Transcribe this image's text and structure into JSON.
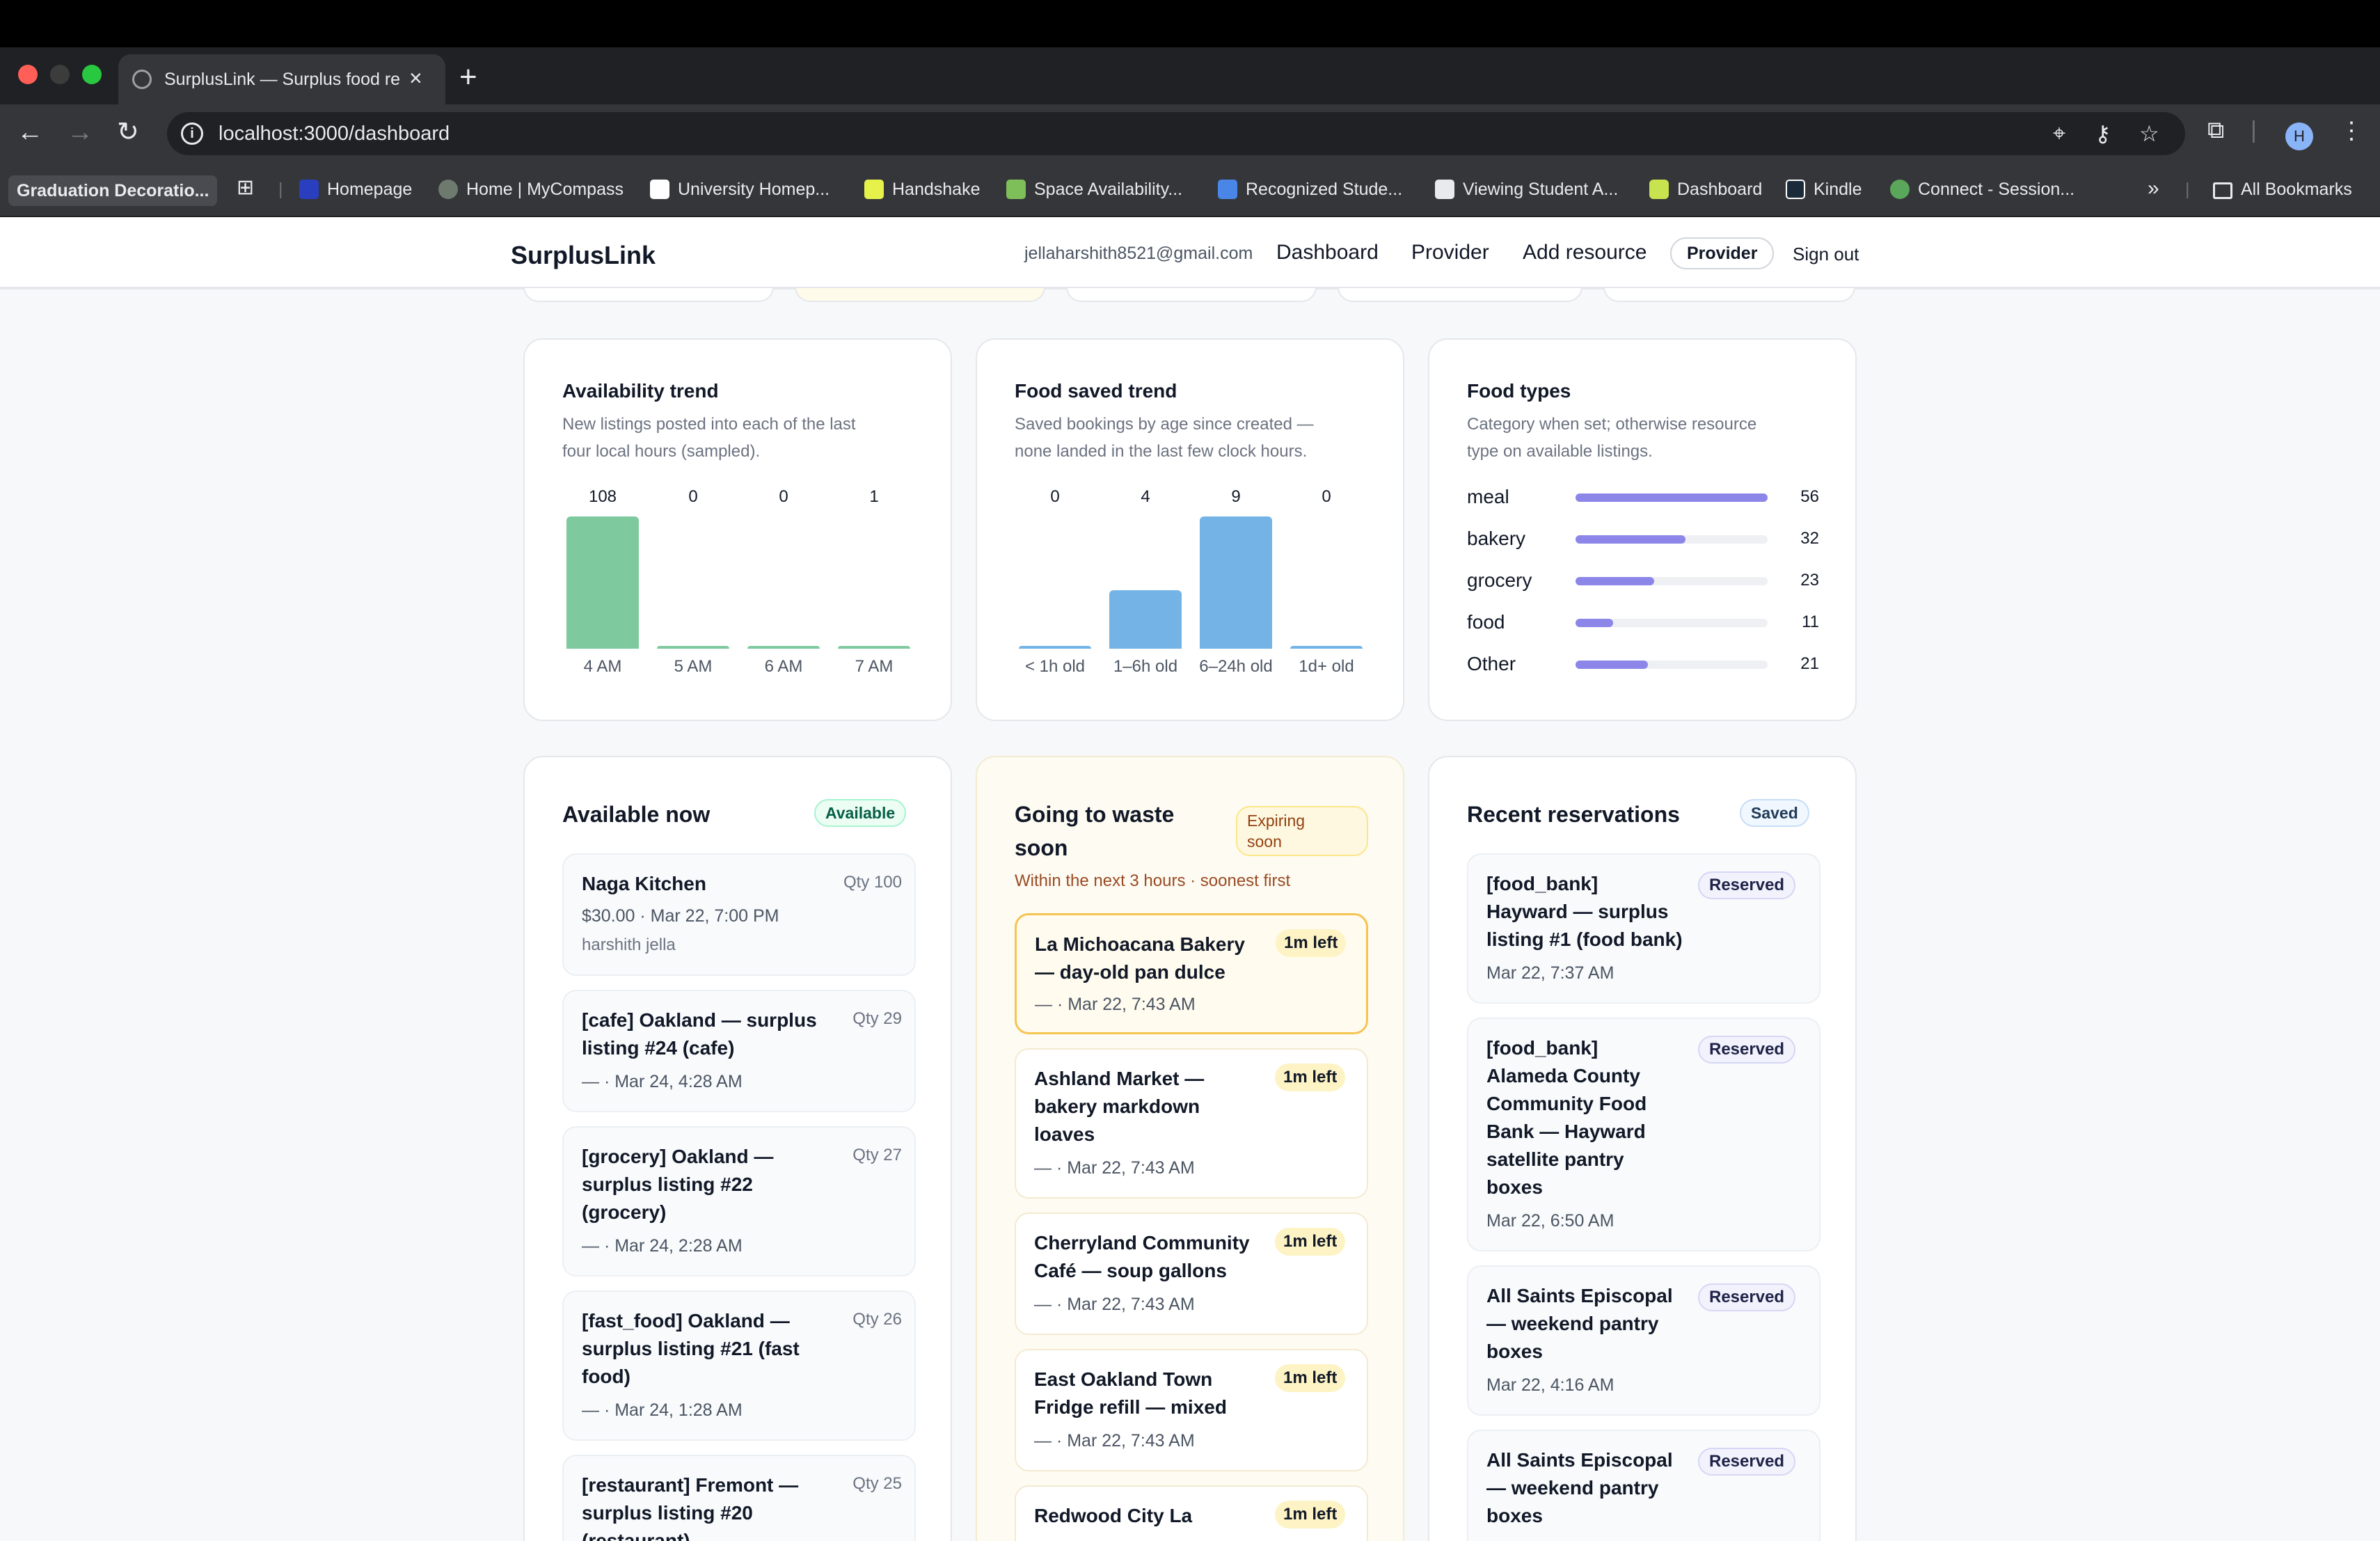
{
  "browser": {
    "tab_title": "SurplusLink — Surplus food re",
    "url": "localhost:3000/dashboard",
    "bookmarks": {
      "first": "Graduation Decoratio...",
      "items": [
        "Homepage",
        "Home | MyCompass",
        "University Homep...",
        "Handshake",
        "Space Availability...",
        "Recognized Stude...",
        "Viewing Student A...",
        "Dashboard",
        "Kindle",
        "Connect - Session..."
      ],
      "overflow": "»",
      "all": "All Bookmarks"
    },
    "avatar_initial": "H"
  },
  "header": {
    "brand": "SurplusLink",
    "email": "jellaharshith8521@gmail.com",
    "nav": [
      "Dashboard",
      "Provider",
      "Add resource"
    ],
    "role": "Provider",
    "signout": "Sign out"
  },
  "availability": {
    "title": "Availability trend",
    "subtitle_1": "New listings posted into each of the last",
    "subtitle_2": "four local hours (sampled).",
    "bar_color": "#7ec99e",
    "bars": [
      {
        "label": "4 AM",
        "value": 108
      },
      {
        "label": "5 AM",
        "value": 0
      },
      {
        "label": "6 AM",
        "value": 0
      },
      {
        "label": "7 AM",
        "value": 1
      }
    ]
  },
  "food_saved": {
    "title": "Food saved trend",
    "subtitle_1": "Saved bookings by age since created —",
    "subtitle_2": "none landed in the last few clock hours.",
    "bar_color": "#73b3e6",
    "bars": [
      {
        "label": "< 1h old",
        "value": 0
      },
      {
        "label": "1–6h old",
        "value": 4
      },
      {
        "label": "6–24h old",
        "value": 9
      },
      {
        "label": "1d+ old",
        "value": 0
      }
    ]
  },
  "food_types": {
    "title": "Food types",
    "subtitle_1": "Category when set; otherwise resource",
    "subtitle_2": "type on available listings.",
    "bar_color": "#8b86e8",
    "rows": [
      {
        "name": "meal",
        "value": 56
      },
      {
        "name": "bakery",
        "value": 32
      },
      {
        "name": "grocery",
        "value": 23
      },
      {
        "name": "food",
        "value": 11
      },
      {
        "name": "Other",
        "value": 21
      }
    ]
  },
  "available_now": {
    "title": "Available now",
    "badge": "Available",
    "items": [
      {
        "title_1": "Naga Kitchen",
        "title_2": "",
        "title_3": "",
        "meta": "$30.00 · Mar 22, 7:00 PM",
        "sub": "harshith jella",
        "qty": "Qty 100"
      },
      {
        "title_1": "[cafe] Oakland — surplus",
        "title_2": "listing #24 (cafe)",
        "title_3": "",
        "meta": "— · Mar 24, 4:28 AM",
        "sub": "",
        "qty": "Qty 29"
      },
      {
        "title_1": "[grocery] Oakland —",
        "title_2": "surplus listing #22",
        "title_3": "(grocery)",
        "meta": "— · Mar 24, 2:28 AM",
        "sub": "",
        "qty": "Qty 27"
      },
      {
        "title_1": "[fast_food] Oakland —",
        "title_2": "surplus listing #21 (fast",
        "title_3": "food)",
        "meta": "— · Mar 24, 1:28 AM",
        "sub": "",
        "qty": "Qty 26"
      },
      {
        "title_1": "[restaurant] Fremont —",
        "title_2": "surplus listing #20",
        "title_3": "(restaurant)",
        "meta": "",
        "sub": "",
        "qty": "Qty 25"
      }
    ]
  },
  "going_to_waste": {
    "title_1": "Going to waste",
    "title_2": "soon",
    "badge_1": "Expiring",
    "badge_2": "soon",
    "note": "Within the next 3 hours · soonest first",
    "items": [
      {
        "title_1": "La Michoacana Bakery",
        "title_2": "— day-old pan dulce",
        "title_3": "",
        "meta": "— · Mar 22, 7:43 AM",
        "left": "1m left"
      },
      {
        "title_1": "Ashland Market —",
        "title_2": "bakery markdown",
        "title_3": "loaves",
        "meta": "— · Mar 22, 7:43 AM",
        "left": "1m left"
      },
      {
        "title_1": "Cherryland Community",
        "title_2": "Café — soup gallons",
        "title_3": "",
        "meta": "— · Mar 22, 7:43 AM",
        "left": "1m left"
      },
      {
        "title_1": "East Oakland Town",
        "title_2": "Fridge refill — mixed",
        "title_3": "",
        "meta": "— · Mar 22, 7:43 AM",
        "left": "1m left"
      },
      {
        "title_1": "Redwood City La",
        "title_2": "",
        "title_3": "",
        "meta": "",
        "left": "1m left"
      }
    ]
  },
  "recent": {
    "title": "Recent reservations",
    "badge": "Saved",
    "items": [
      {
        "lines": [
          "[food_bank]",
          "Hayward — surplus",
          "listing #1 (food bank)"
        ],
        "meta": "Mar 22, 7:37 AM",
        "status": "Reserved"
      },
      {
        "lines": [
          "[food_bank]",
          "Alameda County",
          "Community Food",
          "Bank — Hayward",
          "satellite pantry",
          "boxes"
        ],
        "meta": "Mar 22, 6:50 AM",
        "status": "Reserved"
      },
      {
        "lines": [
          "All Saints Episcopal",
          "— weekend pantry",
          "boxes"
        ],
        "meta": "Mar 22, 4:16 AM",
        "status": "Reserved"
      },
      {
        "lines": [
          "All Saints Episcopal",
          "— weekend pantry",
          "boxes"
        ],
        "meta": "",
        "status": "Reserved"
      }
    ]
  }
}
